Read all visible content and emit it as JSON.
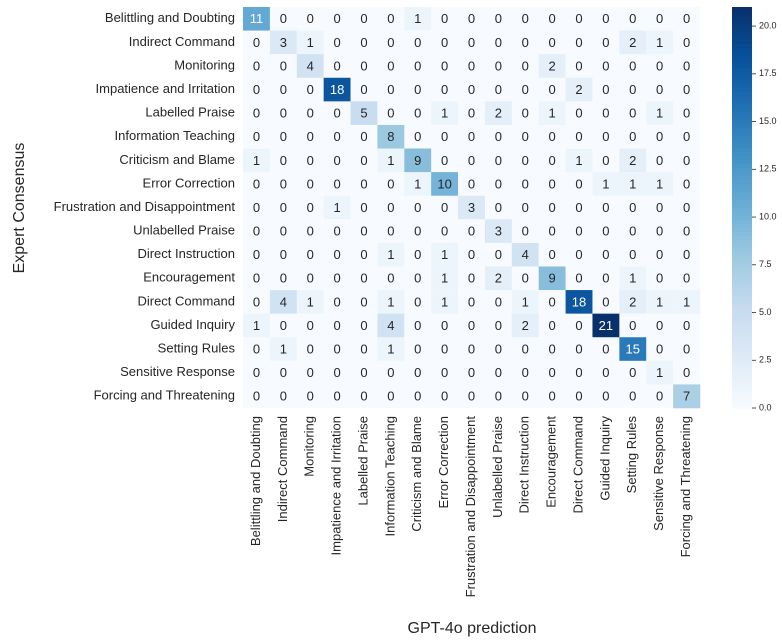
{
  "chart_data": {
    "type": "heatmap",
    "x_label": "GPT-4o prediction",
    "y_label": "Expert Consensus",
    "categories": [
      "Belittling and Doubting",
      "Indirect Command",
      "Monitoring",
      "Impatience and Irritation",
      "Labelled Praise",
      "Information Teaching",
      "Criticism and Blame",
      "Error Correction",
      "Frustration and Disappointment",
      "Unlabelled Praise",
      "Direct Instruction",
      "Encouragement",
      "Direct Command",
      "Guided Inquiry",
      "Setting Rules",
      "Sensitive Response",
      "Forcing and Threatening"
    ],
    "values": [
      [
        11,
        0,
        0,
        0,
        0,
        0,
        1,
        0,
        0,
        0,
        0,
        0,
        0,
        0,
        0,
        0,
        0
      ],
      [
        0,
        3,
        1,
        0,
        0,
        0,
        0,
        0,
        0,
        0,
        0,
        0,
        0,
        0,
        2,
        1,
        0
      ],
      [
        0,
        0,
        4,
        0,
        0,
        0,
        0,
        0,
        0,
        0,
        0,
        2,
        0,
        0,
        0,
        0,
        0
      ],
      [
        0,
        0,
        0,
        18,
        0,
        0,
        0,
        0,
        0,
        0,
        0,
        0,
        2,
        0,
        0,
        0,
        0
      ],
      [
        0,
        0,
        0,
        0,
        5,
        0,
        0,
        1,
        0,
        2,
        0,
        1,
        0,
        0,
        0,
        1,
        0
      ],
      [
        0,
        0,
        0,
        0,
        0,
        8,
        0,
        0,
        0,
        0,
        0,
        0,
        0,
        0,
        0,
        0,
        0
      ],
      [
        1,
        0,
        0,
        0,
        0,
        1,
        9,
        0,
        0,
        0,
        0,
        0,
        1,
        0,
        2,
        0,
        0
      ],
      [
        0,
        0,
        0,
        0,
        0,
        0,
        1,
        10,
        0,
        0,
        0,
        0,
        0,
        1,
        1,
        1,
        0
      ],
      [
        0,
        0,
        0,
        1,
        0,
        0,
        0,
        0,
        3,
        0,
        0,
        0,
        0,
        0,
        0,
        0,
        0
      ],
      [
        0,
        0,
        0,
        0,
        0,
        0,
        0,
        0,
        0,
        3,
        0,
        0,
        0,
        0,
        0,
        0,
        0
      ],
      [
        0,
        0,
        0,
        0,
        0,
        1,
        0,
        1,
        0,
        0,
        4,
        0,
        0,
        0,
        0,
        0,
        0
      ],
      [
        0,
        0,
        0,
        0,
        0,
        0,
        0,
        1,
        0,
        2,
        0,
        9,
        0,
        0,
        1,
        0,
        0
      ],
      [
        0,
        4,
        1,
        0,
        0,
        1,
        0,
        1,
        0,
        0,
        1,
        0,
        18,
        0,
        2,
        1,
        1
      ],
      [
        1,
        0,
        0,
        0,
        0,
        4,
        0,
        0,
        0,
        0,
        2,
        0,
        0,
        21,
        0,
        0,
        0
      ],
      [
        0,
        1,
        0,
        0,
        0,
        1,
        0,
        0,
        0,
        0,
        0,
        0,
        0,
        0,
        15,
        0,
        0
      ],
      [
        0,
        0,
        0,
        0,
        0,
        0,
        0,
        0,
        0,
        0,
        0,
        0,
        0,
        0,
        0,
        1,
        0
      ],
      [
        0,
        0,
        0,
        0,
        0,
        0,
        0,
        0,
        0,
        0,
        0,
        0,
        0,
        0,
        0,
        0,
        7
      ]
    ],
    "colormap": "Blues",
    "zlim": [
      0,
      21
    ],
    "zticks": [
      {
        "value": 0,
        "label": "0.0"
      },
      {
        "value": 2.5,
        "label": "2.5"
      },
      {
        "value": 5,
        "label": "5.0"
      },
      {
        "value": 7.5,
        "label": "7.5"
      },
      {
        "value": 10,
        "label": "10.0"
      },
      {
        "value": 12.5,
        "label": "12.5"
      },
      {
        "value": 15,
        "label": "15.0"
      },
      {
        "value": 17.5,
        "label": "17.5"
      },
      {
        "value": 20,
        "label": "20.0"
      }
    ]
  }
}
